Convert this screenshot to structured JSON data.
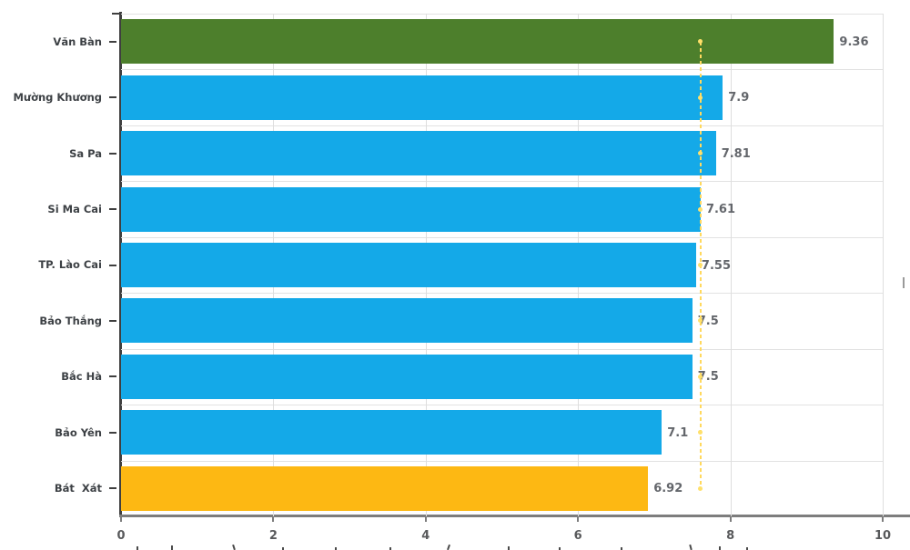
{
  "chart_data": {
    "type": "bar",
    "orientation": "horizontal",
    "categories": [
      "Văn Bàn",
      "Mường Khương",
      "Sa Pa",
      "Si Ma Cai",
      "TP. Lào Cai",
      "Bảo Thắng",
      "Bắc Hà",
      "Bảo Yên",
      "Bát  Xát"
    ],
    "values": [
      9.36,
      7.9,
      7.81,
      7.61,
      7.55,
      7.5,
      7.5,
      7.1,
      6.92
    ],
    "value_labels": [
      "9.36",
      "7.9",
      "7.81",
      "7.61",
      "7.55",
      "7.5",
      "7.5",
      "7.1",
      "6.92"
    ],
    "bar_colors": [
      "#4d7f2c",
      "#14a9e8",
      "#14a9e8",
      "#14a9e8",
      "#14a9e8",
      "#14a9e8",
      "#14a9e8",
      "#14a9e8",
      "#fdb813"
    ],
    "xlabel": "",
    "ylabel": "",
    "xlim": [
      0,
      10
    ],
    "x_ticks": [
      0,
      2,
      4,
      6,
      8,
      10
    ],
    "x_tick_labels": [
      "0",
      "2",
      "4",
      "6",
      "8",
      "10"
    ],
    "grid": true,
    "legend": "none",
    "reference_line": {
      "value": 7.61,
      "style": "dotted",
      "has_point_markers": true,
      "color": "#ffd95e",
      "marker_color": "#ffe06a"
    },
    "colors": {
      "highlight_top_bar": "#4d7f2c",
      "default_bar": "#14a9e8",
      "highlight_bottom_bar": "#fdb813",
      "grid_h": "#e2e2e2",
      "grid_v": "#dedede",
      "y_axis": "#3f3f3f",
      "x_axis": "#7d7d7d",
      "category_text": "#3d4145",
      "value_text": "#63666b",
      "tick_text": "#58595b"
    }
  }
}
